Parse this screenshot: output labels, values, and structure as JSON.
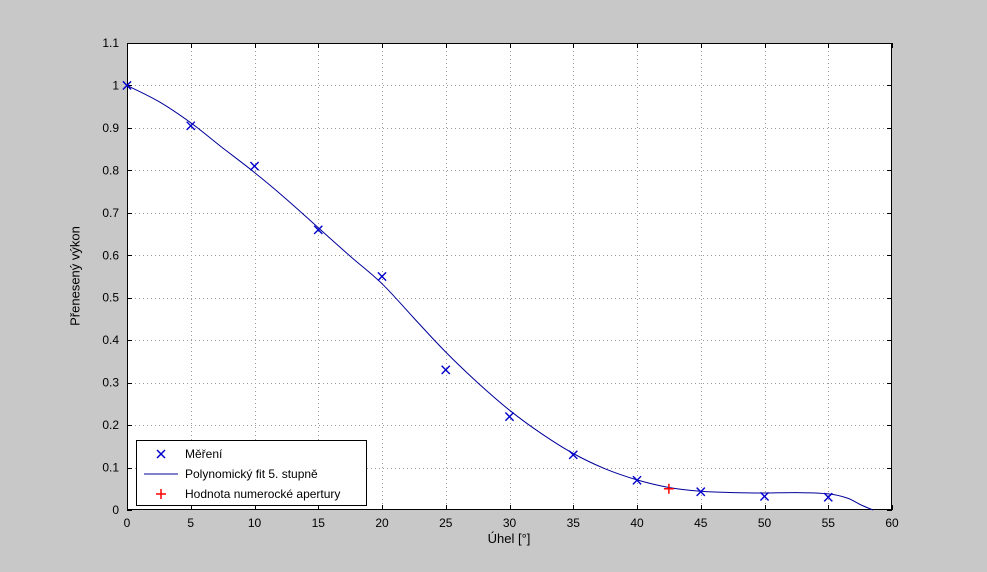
{
  "figure": {
    "background": "#c8c8c8",
    "plot_background": "#ffffff",
    "axes_color": "#000000",
    "grid_color": "#9a9a9a"
  },
  "chart_data": {
    "type": "scatter",
    "title": "",
    "xlabel": "Úhel [°]",
    "ylabel": "Přenesený výkon",
    "xlim": [
      0,
      60
    ],
    "ylim": [
      0,
      1.1
    ],
    "grid": true,
    "legend_position": "bottom-left",
    "xticks": [
      0,
      5,
      10,
      15,
      20,
      25,
      30,
      35,
      40,
      45,
      50,
      55,
      60
    ],
    "xtick_labels": [
      "0",
      "5",
      "10",
      "15",
      "20",
      "25",
      "30",
      "35",
      "40",
      "45",
      "50",
      "55",
      "60"
    ],
    "yticks": [
      0,
      0.1,
      0.2,
      0.3,
      0.4,
      0.5,
      0.6,
      0.7,
      0.8,
      0.9,
      1.0,
      1.1
    ],
    "ytick_labels": [
      "0",
      "0.1",
      "0.2",
      "0.3",
      "0.4",
      "0.5",
      "0.6",
      "0.7",
      "0.8",
      "0.9",
      "1",
      "1.1"
    ],
    "series": [
      {
        "name": "Měření",
        "type": "scatter",
        "marker": "x",
        "color": "#0000cc",
        "x": [
          0,
          5,
          10,
          15,
          20,
          25,
          30,
          35,
          40,
          45,
          50,
          55
        ],
        "y": [
          1.0,
          0.905,
          0.81,
          0.66,
          0.55,
          0.33,
          0.22,
          0.13,
          0.07,
          0.043,
          0.032,
          0.03
        ]
      },
      {
        "name": "Polynomický fit 5. stupně",
        "type": "line",
        "color": "#000099",
        "x": [
          0,
          2.5,
          5,
          7.5,
          10,
          12.5,
          15,
          17.5,
          20,
          22.5,
          25,
          27.5,
          30,
          32.5,
          35,
          37.5,
          40,
          42.5,
          45,
          47.5,
          50,
          52.5,
          55,
          56.5,
          57.5,
          58.5
        ],
        "y": [
          1.0,
          0.962,
          0.912,
          0.853,
          0.795,
          0.732,
          0.665,
          0.598,
          0.533,
          0.452,
          0.372,
          0.3,
          0.235,
          0.18,
          0.133,
          0.097,
          0.071,
          0.053,
          0.044,
          0.041,
          0.04,
          0.041,
          0.038,
          0.028,
          0.013,
          0.0
        ]
      },
      {
        "name": "Hodnota numerocké apertury",
        "type": "scatter",
        "marker": "+",
        "color": "#ff0000",
        "x": [
          42.5
        ],
        "y": [
          0.05
        ]
      }
    ]
  }
}
